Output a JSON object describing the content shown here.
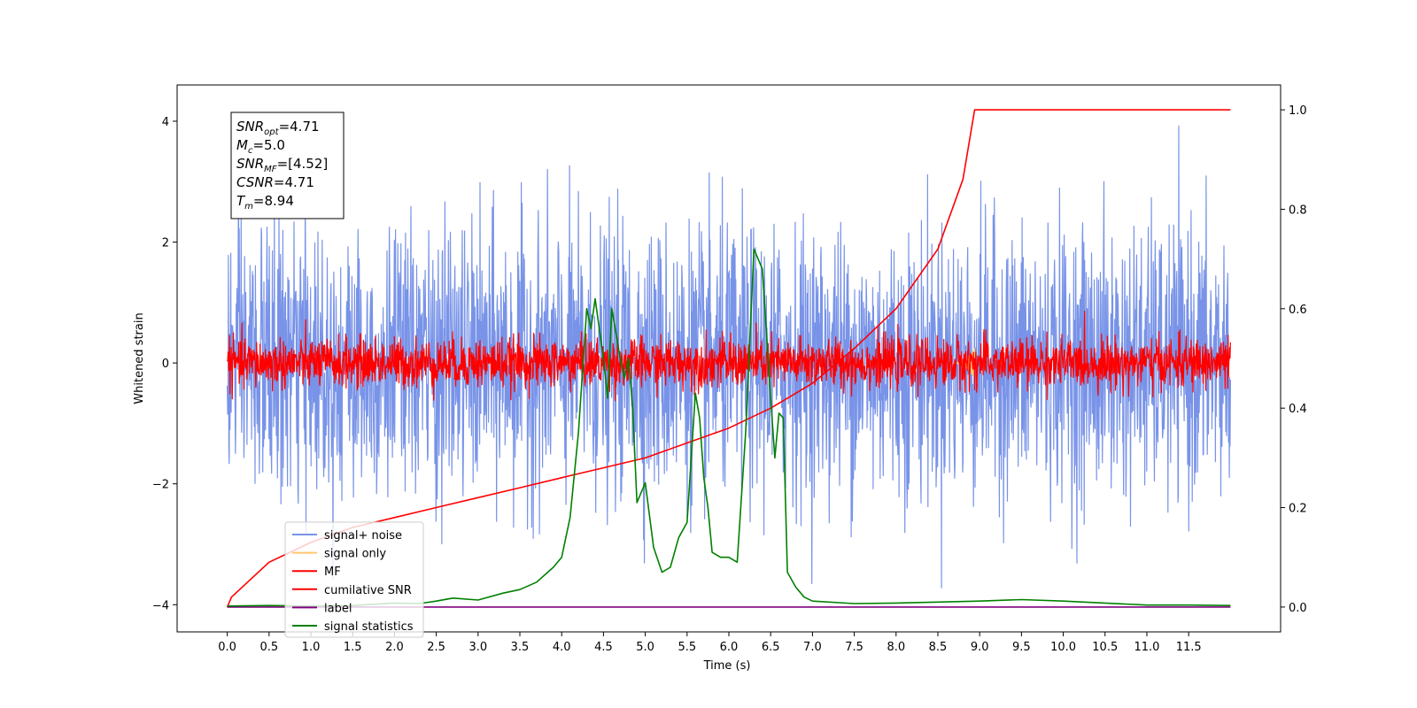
{
  "chart_data": {
    "type": "line",
    "xlabel": "Time (s)",
    "ylabel": "Whitened strain",
    "xlim": [
      -0.6,
      12.6
    ],
    "ylim": [
      -4.45,
      4.6
    ],
    "y2lim": [
      -0.05,
      1.05
    ],
    "x_ticks": [
      "0.0",
      "0.5",
      "1.0",
      "1.5",
      "2.0",
      "2.5",
      "3.0",
      "3.5",
      "4.0",
      "4.5",
      "5.0",
      "5.5",
      "6.0",
      "6.5",
      "7.0",
      "7.5",
      "8.0",
      "8.5",
      "9.0",
      "9.5",
      "10.0",
      "10.5",
      "11.0",
      "11.5"
    ],
    "y_ticks": [
      "4",
      "2",
      "0",
      "−2",
      "−4"
    ],
    "y_tick_values": [
      4,
      2,
      0,
      -2,
      -4
    ],
    "y2_ticks": [
      "1.0",
      "0.8",
      "0.6",
      "0.4",
      "0.2",
      "0.0"
    ],
    "y2_tick_values": [
      1.0,
      0.8,
      0.6,
      0.4,
      0.2,
      0.0
    ],
    "annotation": {
      "lines": [
        {
          "base": "SNR",
          "sub": "opt",
          "value": "=4.71"
        },
        {
          "base": "M",
          "sub": "c",
          "value": "=5.0"
        },
        {
          "base": "SNR",
          "sub": "MF",
          "value": "=[4.52]"
        },
        {
          "base": "CSNR",
          "sub": "",
          "value": "=4.71"
        },
        {
          "base": "T",
          "sub": "m",
          "value": "=8.94"
        }
      ]
    },
    "series": [
      {
        "name": "signal+ noise",
        "color": "#7893e8",
        "axis": "left",
        "kind": "noise",
        "range": [
          0,
          12
        ],
        "amplitude": 1.1
      },
      {
        "name": "signal only",
        "color": "#ffc870",
        "axis": "left",
        "kind": "chirp",
        "range": [
          8.7,
          8.94
        ]
      },
      {
        "name": "MF",
        "color": "#ff0000",
        "axis": "left",
        "kind": "noise",
        "range": [
          0,
          12
        ],
        "amplitude": 0.2
      },
      {
        "name": "cumilative SNR",
        "color": "#ff0000",
        "axis": "right",
        "x": [
          0,
          0.05,
          0.5,
          1,
          1.5,
          2,
          2.5,
          3,
          3.5,
          4,
          4.5,
          5,
          5.5,
          6,
          6.5,
          7,
          7.5,
          8,
          8.5,
          8.8,
          8.94,
          12
        ],
        "y": [
          0,
          0.02,
          0.09,
          0.13,
          0.16,
          0.18,
          0.2,
          0.22,
          0.24,
          0.26,
          0.28,
          0.3,
          0.33,
          0.36,
          0.4,
          0.45,
          0.52,
          0.6,
          0.72,
          0.86,
          1.0,
          1.0
        ]
      },
      {
        "name": "label",
        "color": "#800080",
        "axis": "right",
        "x": [
          0,
          12
        ],
        "y": [
          0,
          0
        ]
      },
      {
        "name": "signal statistics",
        "color": "#008000",
        "axis": "right",
        "x": [
          0,
          0.5,
          1,
          1.5,
          2,
          2.3,
          2.5,
          2.7,
          3,
          3.3,
          3.5,
          3.7,
          3.9,
          4.0,
          4.1,
          4.2,
          4.3,
          4.35,
          4.4,
          4.45,
          4.5,
          4.55,
          4.6,
          4.65,
          4.7,
          4.75,
          4.8,
          4.85,
          4.9,
          5.0,
          5.1,
          5.2,
          5.3,
          5.4,
          5.5,
          5.6,
          5.65,
          5.7,
          5.75,
          5.8,
          5.9,
          6.0,
          6.1,
          6.2,
          6.3,
          6.4,
          6.45,
          6.5,
          6.55,
          6.6,
          6.65,
          6.7,
          6.8,
          6.9,
          7.0,
          7.5,
          8.0,
          8.5,
          9.0,
          9.5,
          10.0,
          11.0,
          11.5,
          12.0
        ],
        "y": [
          0.002,
          0.003,
          0.002,
          0.003,
          0.008,
          0.007,
          0.012,
          0.018,
          0.014,
          0.028,
          0.035,
          0.05,
          0.08,
          0.1,
          0.18,
          0.35,
          0.6,
          0.56,
          0.62,
          0.56,
          0.5,
          0.42,
          0.6,
          0.55,
          0.5,
          0.46,
          0.5,
          0.4,
          0.21,
          0.25,
          0.12,
          0.07,
          0.08,
          0.14,
          0.17,
          0.43,
          0.38,
          0.26,
          0.2,
          0.11,
          0.1,
          0.1,
          0.09,
          0.35,
          0.72,
          0.68,
          0.55,
          0.42,
          0.3,
          0.39,
          0.38,
          0.07,
          0.04,
          0.02,
          0.012,
          0.007,
          0.008,
          0.01,
          0.012,
          0.015,
          0.012,
          0.004,
          0.004,
          0.003
        ]
      }
    ],
    "legend": {
      "placement": "lower-left"
    },
    "grid": false
  }
}
